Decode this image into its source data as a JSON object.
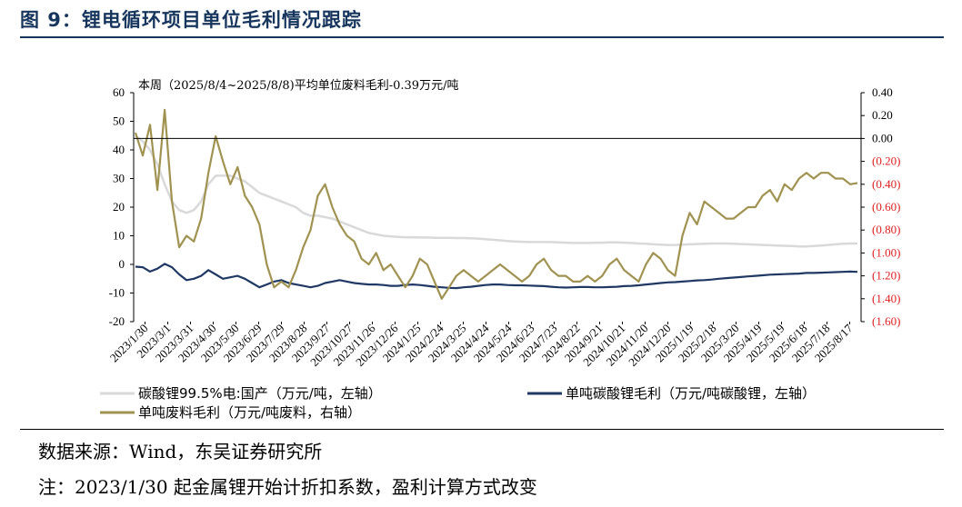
{
  "figure": {
    "title": "图 9：锂电循环项目单位毛利情况跟踪",
    "source": "数据来源：Wind，东吴证券研究所",
    "note": "注：2023/1/30 起金属锂开始计折扣系数，盈利计算方式改变"
  },
  "chart_data": {
    "type": "line",
    "annotation": "本周（2025/8/4~2025/8/8)平均单位废料毛利-0.39万元/吨",
    "left_axis": {
      "ylim": [
        -20,
        60
      ],
      "ticks": [
        "60",
        "50",
        "40",
        "30",
        "20",
        "10",
        "0",
        "-10",
        "-20"
      ]
    },
    "right_axis": {
      "ylim": [
        -1.6,
        0.4
      ],
      "ticks": [
        "0.40",
        "0.20",
        "0.00",
        "(0.20)",
        "(0.40)",
        "(0.60)",
        "(0.80)",
        "(1.00)",
        "(1.20)",
        "(1.40)",
        "(1.60)"
      ],
      "negative_color": "#e02020"
    },
    "x_ticks": [
      "2023/1/30",
      "2023/3/1",
      "2023/3/31",
      "2023/4/30",
      "2023/5/30",
      "2023/6/29",
      "2023/7/29",
      "2023/8/28",
      "2023/9/27",
      "2023/10/27",
      "2023/11/26",
      "2023/12/26",
      "2024/1/25",
      "2024/2/24",
      "2024/3/25",
      "2024/4/24",
      "2024/5/24",
      "2024/6/23",
      "2024/7/23",
      "2024/8/22",
      "2024/9/21",
      "2024/10/21",
      "2024/11/20",
      "2024/12/20",
      "2025/1/19",
      "2025/2/18",
      "2025/3/20",
      "2025/4/19",
      "2025/5/19",
      "2025/6/18",
      "2025/7/18",
      "2025/8/17"
    ],
    "series": [
      {
        "name": "碳酸锂99.5%电:国产（万元/吨，左轴）",
        "axis": "left",
        "color": "#d9d9d9",
        "values": [
          45,
          43,
          40,
          35,
          28,
          22,
          19,
          18,
          19,
          22,
          28,
          31,
          31,
          31,
          30,
          29,
          27,
          25,
          24,
          23,
          22,
          21,
          20,
          18,
          17,
          17,
          16.5,
          16,
          15,
          14,
          13,
          12,
          11,
          10.5,
          10,
          9.8,
          9.6,
          9.5,
          9.5,
          9.4,
          9.4,
          9.3,
          9.3,
          9.3,
          9.2,
          9.2,
          9.1,
          9,
          8.8,
          8.6,
          8.4,
          8.2,
          8,
          7.9,
          7.8,
          7.8,
          7.8,
          7.8,
          7.7,
          7.6,
          7.5,
          7.5,
          7.5,
          7.6,
          7.6,
          7.7,
          7.7,
          7.6,
          7.5,
          7.3,
          7.2,
          7,
          6.9,
          6.8,
          6.8,
          6.9,
          7,
          7.1,
          7.2,
          7.3,
          7.3,
          7.3,
          7.2,
          7.1,
          7,
          6.9,
          6.8,
          6.7,
          6.6,
          6.5,
          6.4,
          6.3,
          6.3,
          6.4,
          6.6,
          6.8,
          7,
          7.2,
          7.3,
          7.3
        ]
      },
      {
        "name": "单吨碳酸锂毛利（万元/吨碳酸锂，左轴）",
        "axis": "left",
        "color": "#1f3864",
        "values": [
          -0.8,
          -1,
          -2.5,
          -1.5,
          0.2,
          -1,
          -3.5,
          -5.5,
          -5,
          -4,
          -2,
          -3.5,
          -5,
          -4.5,
          -4,
          -5,
          -6.5,
          -8,
          -7,
          -6,
          -5.5,
          -6.5,
          -7,
          -7.5,
          -8,
          -7.5,
          -6.5,
          -6,
          -5.5,
          -6,
          -6.5,
          -6.8,
          -7,
          -7,
          -7.2,
          -7.5,
          -7.5,
          -7.2,
          -7,
          -7.2,
          -7.5,
          -7.8,
          -8,
          -8.2,
          -8.3,
          -8,
          -7.8,
          -7.5,
          -7.2,
          -7,
          -7,
          -7.2,
          -7.3,
          -7.3,
          -7.4,
          -7.5,
          -7.6,
          -7.8,
          -8,
          -8.1,
          -8,
          -7.9,
          -7.9,
          -8,
          -8,
          -7.9,
          -7.8,
          -7.6,
          -7.5,
          -7.3,
          -7,
          -6.8,
          -6.5,
          -6.3,
          -6.2,
          -6,
          -5.8,
          -5.6,
          -5.5,
          -5.3,
          -5,
          -4.8,
          -4.6,
          -4.4,
          -4.2,
          -4,
          -3.8,
          -3.6,
          -3.5,
          -3.4,
          -3.3,
          -3.2,
          -3,
          -3,
          -2.9,
          -2.8,
          -2.7,
          -2.6,
          -2.5,
          -2.6
        ]
      },
      {
        "name": "单吨废料毛利（万元/吨废料，右轴）",
        "axis": "right",
        "color": "#a09250",
        "values": [
          0.05,
          -0.15,
          0.12,
          -0.45,
          0.25,
          -0.55,
          -0.95,
          -0.85,
          -0.9,
          -0.7,
          -0.3,
          0.02,
          -0.2,
          -0.4,
          -0.25,
          -0.5,
          -0.6,
          -0.75,
          -1.1,
          -1.3,
          -1.25,
          -1.3,
          -1.15,
          -0.95,
          -0.8,
          -0.5,
          -0.4,
          -0.6,
          -0.75,
          -0.85,
          -0.9,
          -1.05,
          -1.1,
          -1.0,
          -1.15,
          -1.1,
          -1.2,
          -1.3,
          -1.2,
          -1.05,
          -1.1,
          -1.25,
          -1.4,
          -1.3,
          -1.2,
          -1.15,
          -1.2,
          -1.25,
          -1.2,
          -1.15,
          -1.1,
          -1.15,
          -1.2,
          -1.25,
          -1.2,
          -1.1,
          -1.05,
          -1.15,
          -1.2,
          -1.2,
          -1.25,
          -1.25,
          -1.2,
          -1.25,
          -1.2,
          -1.1,
          -1.05,
          -1.15,
          -1.2,
          -1.25,
          -1.1,
          -1.0,
          -1.05,
          -1.15,
          -1.2,
          -0.85,
          -0.65,
          -0.75,
          -0.55,
          -0.6,
          -0.65,
          -0.7,
          -0.7,
          -0.65,
          -0.6,
          -0.6,
          -0.5,
          -0.45,
          -0.55,
          -0.4,
          -0.45,
          -0.35,
          -0.3,
          -0.35,
          -0.3,
          -0.3,
          -0.35,
          -0.35,
          -0.4,
          -0.39
        ]
      }
    ],
    "grid": false,
    "legend_position": "bottom"
  }
}
